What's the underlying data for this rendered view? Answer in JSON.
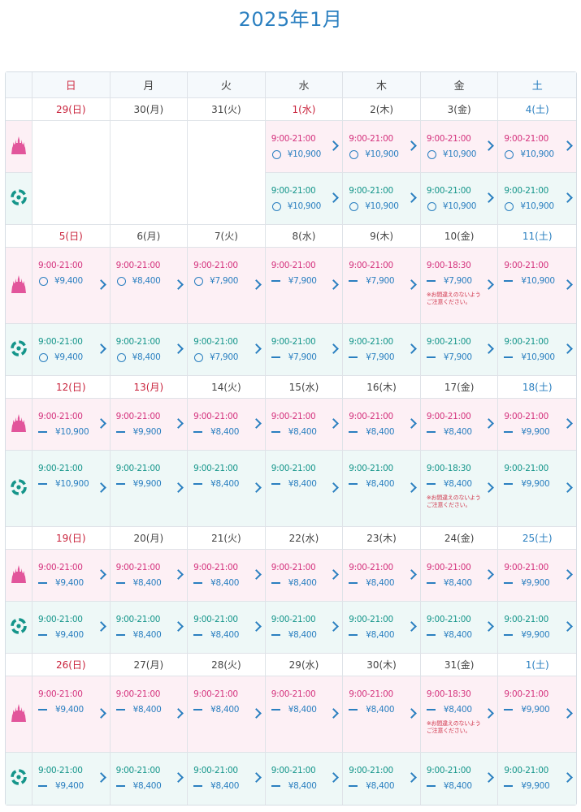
{
  "title": "2025年1月",
  "weekdays": [
    "日",
    "月",
    "火",
    "水",
    "木",
    "金",
    "土"
  ],
  "icons": {
    "land": "castle-icon",
    "sea": "globe-icon"
  },
  "colors": {
    "land_bg": "#fdf0f5",
    "sea_bg": "#eef8f7",
    "land_text": "#d4327d",
    "sea_text": "#14958a",
    "price": "#2a7fc0",
    "sunday": "#c9233c",
    "saturday": "#2a7fc0"
  },
  "weeks": [
    {
      "days": [
        {
          "label": "29(日)",
          "cls": "sun",
          "land": null,
          "sea": null
        },
        {
          "label": "30(月)",
          "cls": "",
          "land": null,
          "sea": null
        },
        {
          "label": "31(火)",
          "cls": "",
          "land": null,
          "sea": null
        },
        {
          "label": "1(水)",
          "cls": "hol",
          "land": {
            "hours": "9:00-21:00",
            "mark": "circle",
            "price": "¥10,900"
          },
          "sea": {
            "hours": "9:00-21:00",
            "mark": "circle",
            "price": "¥10,900"
          }
        },
        {
          "label": "2(木)",
          "cls": "",
          "land": {
            "hours": "9:00-21:00",
            "mark": "circle",
            "price": "¥10,900"
          },
          "sea": {
            "hours": "9:00-21:00",
            "mark": "circle",
            "price": "¥10,900"
          }
        },
        {
          "label": "3(金)",
          "cls": "",
          "land": {
            "hours": "9:00-21:00",
            "mark": "circle",
            "price": "¥10,900"
          },
          "sea": {
            "hours": "9:00-21:00",
            "mark": "circle",
            "price": "¥10,900"
          }
        },
        {
          "label": "4(土)",
          "cls": "sat",
          "land": {
            "hours": "9:00-21:00",
            "mark": "circle",
            "price": "¥10,900"
          },
          "sea": {
            "hours": "9:00-21:00",
            "mark": "circle",
            "price": "¥10,900"
          }
        }
      ]
    },
    {
      "days": [
        {
          "label": "5(日)",
          "cls": "sun",
          "land": {
            "hours": "9:00-21:00",
            "mark": "circle",
            "price": "¥9,400"
          },
          "sea": {
            "hours": "9:00-21:00",
            "mark": "circle",
            "price": "¥9,400"
          }
        },
        {
          "label": "6(月)",
          "cls": "",
          "land": {
            "hours": "9:00-21:00",
            "mark": "circle",
            "price": "¥8,400"
          },
          "sea": {
            "hours": "9:00-21:00",
            "mark": "circle",
            "price": "¥8,400"
          }
        },
        {
          "label": "7(火)",
          "cls": "",
          "land": {
            "hours": "9:00-21:00",
            "mark": "circle",
            "price": "¥7,900"
          },
          "sea": {
            "hours": "9:00-21:00",
            "mark": "circle",
            "price": "¥7,900"
          }
        },
        {
          "label": "8(水)",
          "cls": "",
          "land": {
            "hours": "9:00-21:00",
            "mark": "dash",
            "price": "¥7,900"
          },
          "sea": {
            "hours": "9:00-21:00",
            "mark": "dash",
            "price": "¥7,900"
          }
        },
        {
          "label": "9(木)",
          "cls": "",
          "land": {
            "hours": "9:00-21:00",
            "mark": "dash",
            "price": "¥7,900"
          },
          "sea": {
            "hours": "9:00-21:00",
            "mark": "dash",
            "price": "¥7,900"
          }
        },
        {
          "label": "10(金)",
          "cls": "",
          "land": {
            "hours": "9:00-18:30",
            "mark": "dash",
            "price": "¥7,900",
            "note": "※お間違えのないよう\nご注意ください。"
          },
          "sea": {
            "hours": "9:00-21:00",
            "mark": "dash",
            "price": "¥7,900"
          }
        },
        {
          "label": "11(土)",
          "cls": "sat",
          "land": {
            "hours": "9:00-21:00",
            "mark": "dash",
            "price": "¥10,900"
          },
          "sea": {
            "hours": "9:00-21:00",
            "mark": "dash",
            "price": "¥10,900"
          }
        }
      ]
    },
    {
      "days": [
        {
          "label": "12(日)",
          "cls": "sun",
          "land": {
            "hours": "9:00-21:00",
            "mark": "dash",
            "price": "¥10,900"
          },
          "sea": {
            "hours": "9:00-21:00",
            "mark": "dash",
            "price": "¥10,900"
          }
        },
        {
          "label": "13(月)",
          "cls": "hol",
          "land": {
            "hours": "9:00-21:00",
            "mark": "dash",
            "price": "¥9,900"
          },
          "sea": {
            "hours": "9:00-21:00",
            "mark": "dash",
            "price": "¥9,900"
          }
        },
        {
          "label": "14(火)",
          "cls": "",
          "land": {
            "hours": "9:00-21:00",
            "mark": "dash",
            "price": "¥8,400"
          },
          "sea": {
            "hours": "9:00-21:00",
            "mark": "dash",
            "price": "¥8,400"
          }
        },
        {
          "label": "15(水)",
          "cls": "",
          "land": {
            "hours": "9:00-21:00",
            "mark": "dash",
            "price": "¥8,400"
          },
          "sea": {
            "hours": "9:00-21:00",
            "mark": "dash",
            "price": "¥8,400"
          }
        },
        {
          "label": "16(木)",
          "cls": "",
          "land": {
            "hours": "9:00-21:00",
            "mark": "dash",
            "price": "¥8,400"
          },
          "sea": {
            "hours": "9:00-21:00",
            "mark": "dash",
            "price": "¥8,400"
          }
        },
        {
          "label": "17(金)",
          "cls": "",
          "land": {
            "hours": "9:00-21:00",
            "mark": "dash",
            "price": "¥8,400"
          },
          "sea": {
            "hours": "9:00-18:30",
            "mark": "dash",
            "price": "¥8,400",
            "note": "※お間違えのないよう\nご注意ください。"
          }
        },
        {
          "label": "18(土)",
          "cls": "sat",
          "land": {
            "hours": "9:00-21:00",
            "mark": "dash",
            "price": "¥9,900"
          },
          "sea": {
            "hours": "9:00-21:00",
            "mark": "dash",
            "price": "¥9,900"
          }
        }
      ]
    },
    {
      "days": [
        {
          "label": "19(日)",
          "cls": "sun",
          "land": {
            "hours": "9:00-21:00",
            "mark": "dash",
            "price": "¥9,400"
          },
          "sea": {
            "hours": "9:00-21:00",
            "mark": "dash",
            "price": "¥9,400"
          }
        },
        {
          "label": "20(月)",
          "cls": "",
          "land": {
            "hours": "9:00-21:00",
            "mark": "dash",
            "price": "¥8,400"
          },
          "sea": {
            "hours": "9:00-21:00",
            "mark": "dash",
            "price": "¥8,400"
          }
        },
        {
          "label": "21(火)",
          "cls": "",
          "land": {
            "hours": "9:00-21:00",
            "mark": "dash",
            "price": "¥8,400"
          },
          "sea": {
            "hours": "9:00-21:00",
            "mark": "dash",
            "price": "¥8,400"
          }
        },
        {
          "label": "22(水)",
          "cls": "",
          "land": {
            "hours": "9:00-21:00",
            "mark": "dash",
            "price": "¥8,400"
          },
          "sea": {
            "hours": "9:00-21:00",
            "mark": "dash",
            "price": "¥8,400"
          }
        },
        {
          "label": "23(木)",
          "cls": "",
          "land": {
            "hours": "9:00-21:00",
            "mark": "dash",
            "price": "¥8,400"
          },
          "sea": {
            "hours": "9:00-21:00",
            "mark": "dash",
            "price": "¥8,400"
          }
        },
        {
          "label": "24(金)",
          "cls": "",
          "land": {
            "hours": "9:00-21:00",
            "mark": "dash",
            "price": "¥8,400"
          },
          "sea": {
            "hours": "9:00-21:00",
            "mark": "dash",
            "price": "¥8,400"
          }
        },
        {
          "label": "25(土)",
          "cls": "sat",
          "land": {
            "hours": "9:00-21:00",
            "mark": "dash",
            "price": "¥9,900"
          },
          "sea": {
            "hours": "9:00-21:00",
            "mark": "dash",
            "price": "¥9,900"
          }
        }
      ]
    },
    {
      "days": [
        {
          "label": "26(日)",
          "cls": "sun",
          "land": {
            "hours": "9:00-21:00",
            "mark": "dash",
            "price": "¥9,400"
          },
          "sea": {
            "hours": "9:00-21:00",
            "mark": "dash",
            "price": "¥9,400"
          }
        },
        {
          "label": "27(月)",
          "cls": "",
          "land": {
            "hours": "9:00-21:00",
            "mark": "dash",
            "price": "¥8,400"
          },
          "sea": {
            "hours": "9:00-21:00",
            "mark": "dash",
            "price": "¥8,400"
          }
        },
        {
          "label": "28(火)",
          "cls": "",
          "land": {
            "hours": "9:00-21:00",
            "mark": "dash",
            "price": "¥8,400"
          },
          "sea": {
            "hours": "9:00-21:00",
            "mark": "dash",
            "price": "¥8,400"
          }
        },
        {
          "label": "29(水)",
          "cls": "",
          "land": {
            "hours": "9:00-21:00",
            "mark": "dash",
            "price": "¥8,400"
          },
          "sea": {
            "hours": "9:00-21:00",
            "mark": "dash",
            "price": "¥8,400"
          }
        },
        {
          "label": "30(木)",
          "cls": "",
          "land": {
            "hours": "9:00-21:00",
            "mark": "dash",
            "price": "¥8,400"
          },
          "sea": {
            "hours": "9:00-21:00",
            "mark": "dash",
            "price": "¥8,400"
          }
        },
        {
          "label": "31(金)",
          "cls": "",
          "land": {
            "hours": "9:00-18:30",
            "mark": "dash",
            "price": "¥8,400",
            "note": "※お間違えのないよう\nご注意ください。"
          },
          "sea": {
            "hours": "9:00-21:00",
            "mark": "dash",
            "price": "¥8,400"
          }
        },
        {
          "label": "1(土)",
          "cls": "sat",
          "land": {
            "hours": "9:00-21:00",
            "mark": "dash",
            "price": "¥9,900"
          },
          "sea": {
            "hours": "9:00-21:00",
            "mark": "dash",
            "price": "¥9,900"
          }
        }
      ]
    }
  ]
}
